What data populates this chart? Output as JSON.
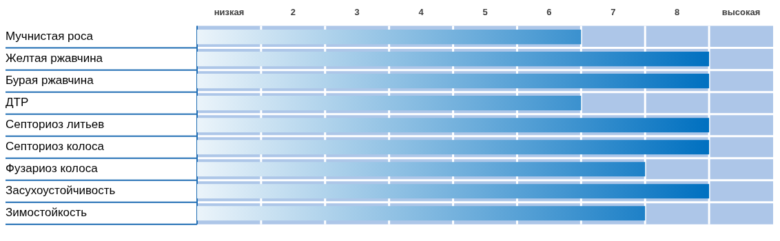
{
  "chart_data": {
    "type": "bar",
    "orientation": "horizontal",
    "categories": [
      "Мучнистая роса",
      "Желтая ржавчина",
      "Бурая ржавчина",
      "ДТР",
      "Септориоз литьев",
      "Септориоз колоса",
      "Фузариоз колоса",
      "Засухоустойчивость",
      "Зимостойкость"
    ],
    "values": [
      6,
      8,
      8,
      6,
      8,
      8,
      7,
      8,
      7
    ],
    "base": [
      0.5,
      0.5,
      0.5,
      0.5,
      0.5,
      0.5,
      0.5,
      0.5,
      0.5
    ],
    "color": "#0070c0",
    "xlim": [
      0.5,
      9.5
    ],
    "xticks": [
      {
        "value": 1,
        "label": "низкая"
      },
      2,
      3,
      4,
      5,
      6,
      7,
      8,
      {
        "value": 9,
        "label": "высокая"
      }
    ],
    "grid": true,
    "legend": false
  }
}
